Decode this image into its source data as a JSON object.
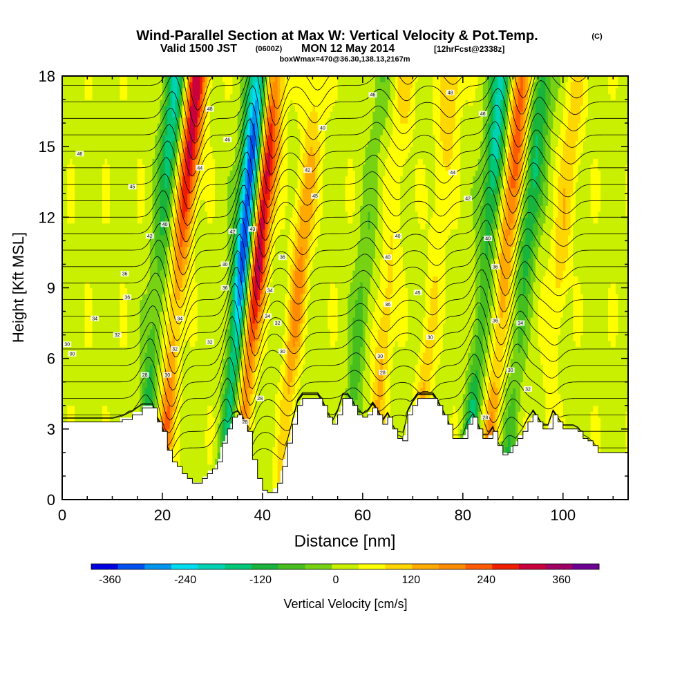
{
  "chart_data": {
    "type": "heatmap",
    "title": "Wind-Parallel Section at Max W: Vertical Velocity & Pot.Temp.",
    "copyright_mark": "(C)",
    "subtitle": {
      "valid_prefix": "Valid 1500 JST",
      "utc_time": "(0600Z)",
      "valid_date": "MON 12 May 2014",
      "forecast_info": "[12hrFcst@2338z]"
    },
    "box_info": "boxWmax=470@36.30,138.13,2167m",
    "xlabel": "Distance [nm]",
    "ylabel": "Height [Kft MSL]",
    "xlim": [
      0,
      113
    ],
    "ylim": [
      0,
      18
    ],
    "x_ticks": [
      0,
      20,
      40,
      60,
      80,
      100
    ],
    "y_ticks": [
      0,
      3,
      6,
      9,
      12,
      15,
      18
    ],
    "grid": false,
    "colorbar": {
      "label": "Vertical Velocity [cm/s]",
      "range": [
        -390,
        420
      ],
      "ticks": [
        -360,
        -240,
        -120,
        0,
        120,
        240,
        360
      ],
      "colors": [
        "#0000e0",
        "#0050f0",
        "#0096f0",
        "#00dcf0",
        "#00d2b4",
        "#00c878",
        "#18b43c",
        "#46be1e",
        "#78d214",
        "#c8f000",
        "#ffff00",
        "#ffd700",
        "#ffaa00",
        "#ff8c00",
        "#ff5a00",
        "#f01e00",
        "#c8003c",
        "#a00064",
        "#6e0096"
      ]
    },
    "w_features": [
      {
        "x": 17,
        "w": -200,
        "name": "downdraft"
      },
      {
        "x": 21,
        "w": 300,
        "name": "updraft"
      },
      {
        "x": 33.5,
        "w": -390,
        "name": "downdraft"
      },
      {
        "x": 36.5,
        "w": 330,
        "name": "updraft"
      },
      {
        "x": 45,
        "w": 150,
        "name": "updraft"
      },
      {
        "x": 58,
        "w": -90,
        "name": "downdraft"
      },
      {
        "x": 63,
        "w": 110,
        "name": "updraft"
      },
      {
        "x": 72,
        "w": 110,
        "name": "updraft"
      },
      {
        "x": 82,
        "w": -220,
        "name": "downdraft"
      },
      {
        "x": 86,
        "w": 220,
        "name": "updraft"
      },
      {
        "x": 90,
        "w": -160,
        "name": "downdraft"
      },
      {
        "x": 97,
        "w": 90,
        "name": "updraft"
      }
    ],
    "terrain_height": {
      "x": [
        0,
        5,
        10,
        12,
        14,
        16,
        17,
        18,
        19,
        20,
        21,
        22,
        23,
        24,
        25,
        26,
        27,
        28,
        29,
        30,
        31,
        32,
        33,
        34,
        35,
        36,
        37,
        38,
        39,
        40,
        41,
        42,
        43,
        44,
        45,
        46,
        47,
        48,
        49,
        50,
        51,
        52,
        53,
        54,
        55,
        56,
        57,
        58,
        59,
        60,
        61,
        62,
        63,
        64,
        65,
        66,
        67,
        68,
        69,
        70,
        71,
        72,
        73,
        74,
        75,
        76,
        77,
        78,
        79,
        80,
        81,
        82,
        83,
        84,
        85,
        86,
        87,
        88,
        89,
        90,
        91,
        92,
        93,
        94,
        95,
        96,
        97,
        98,
        99,
        100,
        101,
        102,
        103,
        104,
        105,
        106,
        107,
        108,
        110,
        113
      ],
      "y": [
        3.3,
        3.3,
        3.3,
        3.4,
        3.6,
        3.9,
        3.9,
        3.9,
        3.3,
        2.9,
        2.1,
        1.6,
        1.4,
        1.1,
        0.9,
        0.7,
        0.7,
        0.9,
        1.1,
        1.3,
        1.6,
        2.4,
        3.0,
        3.5,
        3.6,
        3.3,
        2.9,
        1.7,
        0.9,
        0.4,
        0.3,
        0.3,
        0.7,
        1.4,
        2.4,
        3.2,
        4.0,
        4.3,
        4.3,
        4.3,
        4.3,
        4.0,
        3.5,
        3.2,
        3.6,
        4.3,
        4.3,
        4.0,
        3.6,
        3.5,
        3.6,
        3.9,
        3.6,
        3.2,
        3.5,
        3.0,
        2.6,
        2.5,
        3.6,
        4.0,
        4.3,
        4.3,
        4.3,
        4.3,
        4.0,
        3.6,
        3.2,
        2.6,
        2.6,
        2.6,
        3.2,
        3.5,
        3.0,
        2.6,
        2.6,
        2.9,
        2.3,
        1.9,
        2.0,
        2.3,
        2.6,
        2.9,
        3.3,
        3.6,
        3.3,
        3.0,
        3.0,
        3.6,
        3.3,
        3.0,
        3.0,
        3.0,
        2.9,
        2.6,
        2.5,
        2.3,
        2.0,
        2.0,
        2.0,
        2.0
      ]
    },
    "contour_labels": [
      {
        "x": 3.5,
        "y": 14.7,
        "text": "46"
      },
      {
        "x": 14,
        "y": 13.3,
        "text": "45"
      },
      {
        "x": 29.5,
        "y": 16.6,
        "text": "48"
      },
      {
        "x": 27.5,
        "y": 14.1,
        "text": "44"
      },
      {
        "x": 33,
        "y": 15.3,
        "text": "46"
      },
      {
        "x": 52,
        "y": 15.8,
        "text": "40"
      },
      {
        "x": 49,
        "y": 14.0,
        "text": "42"
      },
      {
        "x": 50.5,
        "y": 12.9,
        "text": "45"
      },
      {
        "x": 62,
        "y": 17.2,
        "text": "46"
      },
      {
        "x": 77.5,
        "y": 17.3,
        "text": "48"
      },
      {
        "x": 84,
        "y": 16.4,
        "text": "46"
      },
      {
        "x": 78,
        "y": 13.9,
        "text": "44"
      },
      {
        "x": 81,
        "y": 12.8,
        "text": "42"
      },
      {
        "x": 20.5,
        "y": 11.7,
        "text": "40"
      },
      {
        "x": 17.5,
        "y": 11.2,
        "text": "42"
      },
      {
        "x": 34,
        "y": 11.4,
        "text": "42"
      },
      {
        "x": 38,
        "y": 11.5,
        "text": "43"
      },
      {
        "x": 67,
        "y": 11.2,
        "text": "40"
      },
      {
        "x": 65,
        "y": 10.3,
        "text": "40"
      },
      {
        "x": 85,
        "y": 11.1,
        "text": "40"
      },
      {
        "x": 12.5,
        "y": 9.6,
        "text": "36"
      },
      {
        "x": 32.5,
        "y": 10.0,
        "text": "30"
      },
      {
        "x": 44,
        "y": 10.3,
        "text": "36"
      },
      {
        "x": 41.5,
        "y": 8.9,
        "text": "34"
      },
      {
        "x": 32.5,
        "y": 9.0,
        "text": "36"
      },
      {
        "x": 13,
        "y": 8.6,
        "text": "36"
      },
      {
        "x": 6.5,
        "y": 7.7,
        "text": "34"
      },
      {
        "x": 23.5,
        "y": 7.7,
        "text": "34"
      },
      {
        "x": 41,
        "y": 7.8,
        "text": "34"
      },
      {
        "x": 43,
        "y": 7.5,
        "text": "32"
      },
      {
        "x": 65,
        "y": 8.3,
        "text": "36"
      },
      {
        "x": 71,
        "y": 8.8,
        "text": "45"
      },
      {
        "x": 86.5,
        "y": 9.9,
        "text": "36"
      },
      {
        "x": 86.5,
        "y": 7.6,
        "text": "36"
      },
      {
        "x": 91.5,
        "y": 7.5,
        "text": "34"
      },
      {
        "x": 11,
        "y": 7.0,
        "text": "32"
      },
      {
        "x": 1,
        "y": 6.6,
        "text": "30"
      },
      {
        "x": 2,
        "y": 6.2,
        "text": "00"
      },
      {
        "x": 29.5,
        "y": 6.7,
        "text": "32"
      },
      {
        "x": 22.5,
        "y": 6.4,
        "text": "32"
      },
      {
        "x": 44,
        "y": 6.3,
        "text": "30"
      },
      {
        "x": 63.5,
        "y": 6.1,
        "text": "30"
      },
      {
        "x": 73.5,
        "y": 6.9,
        "text": "30"
      },
      {
        "x": 16.5,
        "y": 5.3,
        "text": "28"
      },
      {
        "x": 21,
        "y": 5.3,
        "text": "30"
      },
      {
        "x": 64,
        "y": 5.4,
        "text": "28"
      },
      {
        "x": 89.5,
        "y": 5.5,
        "text": "30"
      },
      {
        "x": 39.5,
        "y": 4.3,
        "text": "28"
      },
      {
        "x": 93,
        "y": 4.7,
        "text": "32"
      },
      {
        "x": 36.5,
        "y": 3.3,
        "text": "28"
      },
      {
        "x": 84.5,
        "y": 3.5,
        "text": "28"
      }
    ]
  }
}
